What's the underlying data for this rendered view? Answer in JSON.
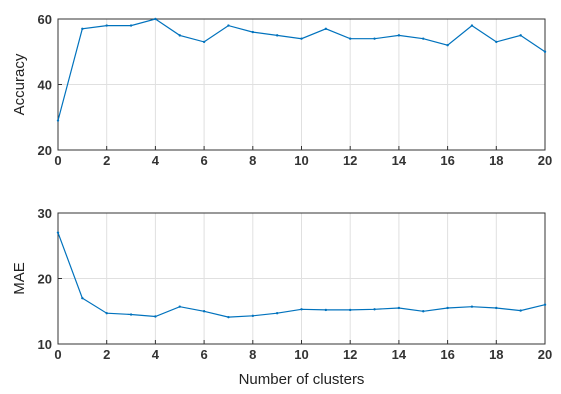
{
  "chart_data": [
    {
      "type": "line",
      "xlabel": "",
      "ylabel": "Accuracy",
      "xlim": [
        0,
        20
      ],
      "ylim": [
        20,
        60
      ],
      "xticks": [
        "0",
        "2",
        "4",
        "6",
        "8",
        "10",
        "12",
        "14",
        "16",
        "18",
        "20"
      ],
      "yticks": [
        "20",
        "40",
        "60"
      ],
      "grid": true,
      "color": "#0072BD",
      "x": [
        0,
        1,
        2,
        3,
        4,
        5,
        6,
        7,
        8,
        9,
        10,
        11,
        12,
        13,
        14,
        15,
        16,
        17,
        18,
        19,
        20
      ],
      "y": [
        29,
        57,
        58,
        58,
        60,
        55,
        53,
        58,
        56,
        55,
        54,
        57,
        54,
        54,
        55,
        54,
        52,
        58,
        53,
        55,
        50
      ]
    },
    {
      "type": "line",
      "xlabel": "Number of clusters",
      "ylabel": "MAE",
      "xlim": [
        0,
        20
      ],
      "ylim": [
        10,
        30
      ],
      "xticks": [
        "0",
        "2",
        "4",
        "6",
        "8",
        "10",
        "12",
        "14",
        "16",
        "18",
        "20"
      ],
      "yticks": [
        "10",
        "20",
        "30"
      ],
      "grid": true,
      "color": "#0072BD",
      "x": [
        0,
        1,
        2,
        3,
        4,
        5,
        6,
        7,
        8,
        9,
        10,
        11,
        12,
        13,
        14,
        15,
        16,
        17,
        18,
        19,
        20
      ],
      "y": [
        27,
        17,
        14.7,
        14.5,
        14.2,
        15.7,
        15,
        14.1,
        14.3,
        14.7,
        15.3,
        15.2,
        15.2,
        15.3,
        15.5,
        15,
        15.5,
        15.7,
        15.5,
        15.1,
        16
      ]
    }
  ]
}
